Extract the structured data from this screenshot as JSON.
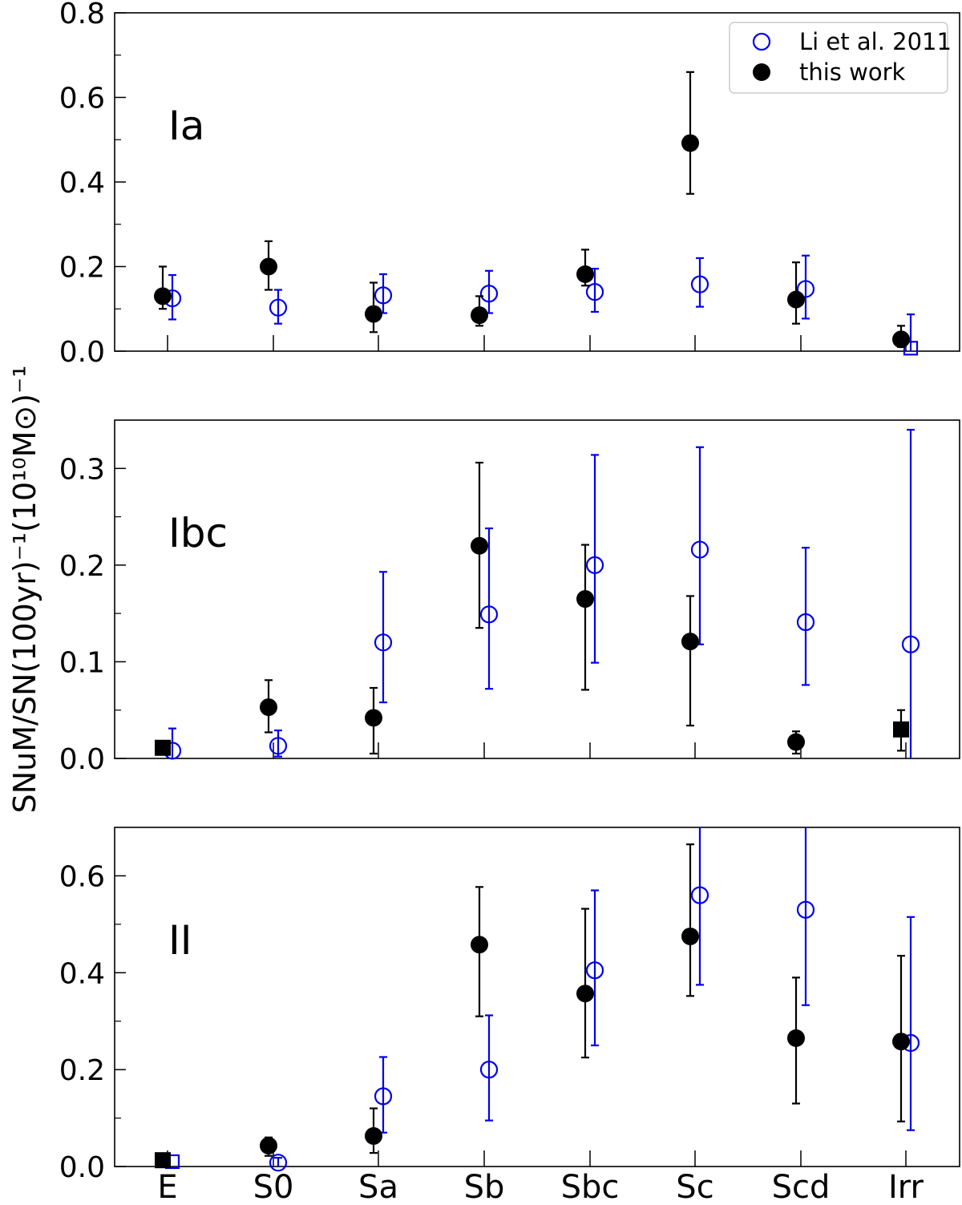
{
  "chart_data": {
    "type": "scatter",
    "ylabel": "SNuM/SN(100yr)⁻¹(10¹⁰M⊙)⁻¹",
    "categories": [
      "E",
      "S0",
      "Sa",
      "Sb",
      "Sbc",
      "Sc",
      "Scd",
      "Irr"
    ],
    "legend": {
      "placement": "top-right",
      "entries": [
        {
          "name": "Li et al. 2011",
          "marker": "open-circle",
          "color": "#0000ee"
        },
        {
          "name": "this work",
          "marker": "filled-circle",
          "color": "#000000"
        }
      ]
    },
    "panels": [
      {
        "label": "Ia",
        "ylim": [
          0,
          0.8
        ],
        "yticks": [
          "0.0",
          "0.2",
          "0.4",
          "0.6",
          "0.8"
        ],
        "series": [
          {
            "name": "Li et al. 2011",
            "points": [
              {
                "category": "E",
                "y": 0.125,
                "lo": 0.075,
                "hi": 0.18
              },
              {
                "category": "S0",
                "y": 0.103,
                "lo": 0.065,
                "hi": 0.145
              },
              {
                "category": "Sa",
                "y": 0.132,
                "lo": 0.09,
                "hi": 0.182
              },
              {
                "category": "Sb",
                "y": 0.136,
                "lo": 0.09,
                "hi": 0.19
              },
              {
                "category": "Sbc",
                "y": 0.14,
                "lo": 0.093,
                "hi": 0.195
              },
              {
                "category": "Sc",
                "y": 0.158,
                "lo": 0.105,
                "hi": 0.22
              },
              {
                "category": "Scd",
                "y": 0.147,
                "lo": 0.077,
                "hi": 0.226
              },
              {
                "category": "Irr",
                "y": 0.007,
                "lo": 0.0,
                "hi": 0.087,
                "marker": "open-square"
              }
            ]
          },
          {
            "name": "this work",
            "points": [
              {
                "category": "E",
                "y": 0.13,
                "lo": 0.1,
                "hi": 0.2
              },
              {
                "category": "S0",
                "y": 0.2,
                "lo": 0.145,
                "hi": 0.26
              },
              {
                "category": "Sa",
                "y": 0.088,
                "lo": 0.045,
                "hi": 0.162
              },
              {
                "category": "Sb",
                "y": 0.085,
                "lo": 0.06,
                "hi": 0.13
              },
              {
                "category": "Sbc",
                "y": 0.182,
                "lo": 0.155,
                "hi": 0.24
              },
              {
                "category": "Sc",
                "y": 0.492,
                "lo": 0.372,
                "hi": 0.66
              },
              {
                "category": "Scd",
                "y": 0.122,
                "lo": 0.065,
                "hi": 0.21
              },
              {
                "category": "Irr",
                "y": 0.028,
                "lo": 0.01,
                "hi": 0.06
              }
            ]
          }
        ]
      },
      {
        "label": "Ibc",
        "ylim": [
          0,
          0.35
        ],
        "yticks": [
          "0.0",
          "0.1",
          "0.2",
          "0.3"
        ],
        "series": [
          {
            "name": "Li et al. 2011",
            "points": [
              {
                "category": "E",
                "y": 0.008,
                "lo": 0.0,
                "hi": 0.031
              },
              {
                "category": "S0",
                "y": 0.013,
                "lo": 0.002,
                "hi": 0.029
              },
              {
                "category": "Sa",
                "y": 0.12,
                "lo": 0.058,
                "hi": 0.193
              },
              {
                "category": "Sb",
                "y": 0.149,
                "lo": 0.072,
                "hi": 0.238
              },
              {
                "category": "Sbc",
                "y": 0.2,
                "lo": 0.099,
                "hi": 0.314
              },
              {
                "category": "Sc",
                "y": 0.216,
                "lo": 0.118,
                "hi": 0.322
              },
              {
                "category": "Scd",
                "y": 0.141,
                "lo": 0.076,
                "hi": 0.218
              },
              {
                "category": "Irr",
                "y": 0.118,
                "lo": 0.0,
                "hi": 0.34
              }
            ]
          },
          {
            "name": "this work",
            "points": [
              {
                "category": "E",
                "y": 0.011,
                "marker": "filled-square"
              },
              {
                "category": "S0",
                "y": 0.053,
                "lo": 0.027,
                "hi": 0.081
              },
              {
                "category": "Sa",
                "y": 0.042,
                "lo": 0.005,
                "hi": 0.073
              },
              {
                "category": "Sb",
                "y": 0.22,
                "lo": 0.135,
                "hi": 0.306
              },
              {
                "category": "Sbc",
                "y": 0.165,
                "lo": 0.071,
                "hi": 0.221
              },
              {
                "category": "Sc",
                "y": 0.121,
                "lo": 0.034,
                "hi": 0.168
              },
              {
                "category": "Scd",
                "y": 0.017,
                "lo": 0.005,
                "hi": 0.028
              },
              {
                "category": "Irr",
                "y": 0.03,
                "lo": 0.008,
                "hi": 0.05,
                "marker": "filled-square"
              }
            ]
          }
        ]
      },
      {
        "label": "II",
        "ylim": [
          0,
          0.7
        ],
        "yticks": [
          "0.0",
          "0.2",
          "0.4",
          "0.6"
        ],
        "series": [
          {
            "name": "Li et al. 2011",
            "points": [
              {
                "category": "E",
                "y": 0.01,
                "marker": "open-square"
              },
              {
                "category": "S0",
                "y": 0.008,
                "lo": 0.0,
                "hi": 0.018
              },
              {
                "category": "Sa",
                "y": 0.145,
                "lo": 0.07,
                "hi": 0.226
              },
              {
                "category": "Sb",
                "y": 0.2,
                "lo": 0.095,
                "hi": 0.312
              },
              {
                "category": "Sbc",
                "y": 0.405,
                "lo": 0.25,
                "hi": 0.57
              },
              {
                "category": "Sc",
                "y": 0.56,
                "lo": 0.375,
                "hi": 0.7
              },
              {
                "category": "Scd",
                "y": 0.53,
                "lo": 0.333,
                "hi": 0.7
              },
              {
                "category": "Irr",
                "y": 0.255,
                "lo": 0.075,
                "hi": 0.515
              }
            ]
          },
          {
            "name": "this work",
            "points": [
              {
                "category": "E",
                "y": 0.013,
                "marker": "filled-square"
              },
              {
                "category": "S0",
                "y": 0.043,
                "lo": 0.022,
                "hi": 0.06
              },
              {
                "category": "Sa",
                "y": 0.063,
                "lo": 0.028,
                "hi": 0.12
              },
              {
                "category": "Sb",
                "y": 0.458,
                "lo": 0.31,
                "hi": 0.577
              },
              {
                "category": "Sbc",
                "y": 0.357,
                "lo": 0.225,
                "hi": 0.532
              },
              {
                "category": "Sc",
                "y": 0.475,
                "lo": 0.352,
                "hi": 0.665
              },
              {
                "category": "Scd",
                "y": 0.265,
                "lo": 0.13,
                "hi": 0.39
              },
              {
                "category": "Irr",
                "y": 0.258,
                "lo": 0.093,
                "hi": 0.435
              }
            ]
          }
        ]
      }
    ]
  }
}
